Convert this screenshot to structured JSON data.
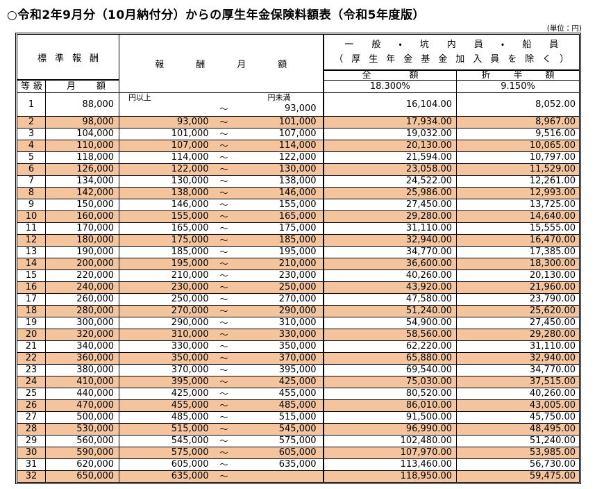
{
  "page": {
    "title": "○令和2年9月分（10月納付分）からの厚生年金保険料額表（令和5年度版）",
    "unit_label": "(単位：円)"
  },
  "colors": {
    "row_highlight": "#F4C49C"
  },
  "table": {
    "headers": {
      "standard_remuneration": "標準報酬",
      "grade": "等級",
      "monthly_amount": "月額",
      "remuneration_monthly": "報酬月額",
      "general_line1": "一般・坑内員・船員",
      "general_line2": "（厚生年金基金加入員を除く）",
      "full_amount": "全額",
      "half_amount": "折半額",
      "full_rate": "18.300%",
      "half_rate": "9.150%",
      "yen_or_more": "円以上",
      "yen_less_than": "円未満",
      "tilde": "～"
    },
    "rows": [
      {
        "grade": "1",
        "monthly": "88,000",
        "lower": "",
        "upper": "93,000",
        "full": "16,104.00",
        "half": "8,052.00"
      },
      {
        "grade": "2",
        "monthly": "98,000",
        "lower": "93,000",
        "upper": "101,000",
        "full": "17,934.00",
        "half": "8,967.00"
      },
      {
        "grade": "3",
        "monthly": "104,000",
        "lower": "101,000",
        "upper": "107,000",
        "full": "19,032.00",
        "half": "9,516.00"
      },
      {
        "grade": "4",
        "monthly": "110,000",
        "lower": "107,000",
        "upper": "114,000",
        "full": "20,130.00",
        "half": "10,065.00"
      },
      {
        "grade": "5",
        "monthly": "118,000",
        "lower": "114,000",
        "upper": "122,000",
        "full": "21,594.00",
        "half": "10,797.00"
      },
      {
        "grade": "6",
        "monthly": "126,000",
        "lower": "122,000",
        "upper": "130,000",
        "full": "23,058.00",
        "half": "11,529.00"
      },
      {
        "grade": "7",
        "monthly": "134,000",
        "lower": "130,000",
        "upper": "138,000",
        "full": "24,522.00",
        "half": "12,261.00"
      },
      {
        "grade": "8",
        "monthly": "142,000",
        "lower": "138,000",
        "upper": "146,000",
        "full": "25,986.00",
        "half": "12,993.00"
      },
      {
        "grade": "9",
        "monthly": "150,000",
        "lower": "146,000",
        "upper": "155,000",
        "full": "27,450.00",
        "half": "13,725.00"
      },
      {
        "grade": "10",
        "monthly": "160,000",
        "lower": "155,000",
        "upper": "165,000",
        "full": "29,280.00",
        "half": "14,640.00"
      },
      {
        "grade": "11",
        "monthly": "170,000",
        "lower": "165,000",
        "upper": "175,000",
        "full": "31,110.00",
        "half": "15,555.00"
      },
      {
        "grade": "12",
        "monthly": "180,000",
        "lower": "175,000",
        "upper": "185,000",
        "full": "32,940.00",
        "half": "16,470.00"
      },
      {
        "grade": "13",
        "monthly": "190,000",
        "lower": "185,000",
        "upper": "195,000",
        "full": "34,770.00",
        "half": "17,385.00"
      },
      {
        "grade": "14",
        "monthly": "200,000",
        "lower": "195,000",
        "upper": "210,000",
        "full": "36,600.00",
        "half": "18,300.00"
      },
      {
        "grade": "15",
        "monthly": "220,000",
        "lower": "210,000",
        "upper": "230,000",
        "full": "40,260.00",
        "half": "20,130.00"
      },
      {
        "grade": "16",
        "monthly": "240,000",
        "lower": "230,000",
        "upper": "250,000",
        "full": "43,920.00",
        "half": "21,960.00"
      },
      {
        "grade": "17",
        "monthly": "260,000",
        "lower": "250,000",
        "upper": "270,000",
        "full": "47,580.00",
        "half": "23,790.00"
      },
      {
        "grade": "18",
        "monthly": "280,000",
        "lower": "270,000",
        "upper": "290,000",
        "full": "51,240.00",
        "half": "25,620.00"
      },
      {
        "grade": "19",
        "monthly": "300,000",
        "lower": "290,000",
        "upper": "310,000",
        "full": "54,900.00",
        "half": "27,450.00"
      },
      {
        "grade": "20",
        "monthly": "320,000",
        "lower": "310,000",
        "upper": "330,000",
        "full": "58,560.00",
        "half": "29,280.00"
      },
      {
        "grade": "21",
        "monthly": "340,000",
        "lower": "330,000",
        "upper": "350,000",
        "full": "62,220.00",
        "half": "31,110.00"
      },
      {
        "grade": "22",
        "monthly": "360,000",
        "lower": "350,000",
        "upper": "370,000",
        "full": "65,880.00",
        "half": "32,940.00"
      },
      {
        "grade": "23",
        "monthly": "380,000",
        "lower": "370,000",
        "upper": "395,000",
        "full": "69,540.00",
        "half": "34,770.00"
      },
      {
        "grade": "24",
        "monthly": "410,000",
        "lower": "395,000",
        "upper": "425,000",
        "full": "75,030.00",
        "half": "37,515.00"
      },
      {
        "grade": "25",
        "monthly": "440,000",
        "lower": "425,000",
        "upper": "455,000",
        "full": "80,520.00",
        "half": "40,260.00"
      },
      {
        "grade": "26",
        "monthly": "470,000",
        "lower": "455,000",
        "upper": "485,000",
        "full": "86,010.00",
        "half": "43,005.00"
      },
      {
        "grade": "27",
        "monthly": "500,000",
        "lower": "485,000",
        "upper": "515,000",
        "full": "91,500.00",
        "half": "45,750.00"
      },
      {
        "grade": "28",
        "monthly": "530,000",
        "lower": "515,000",
        "upper": "545,000",
        "full": "96,990.00",
        "half": "48,495.00"
      },
      {
        "grade": "29",
        "monthly": "560,000",
        "lower": "545,000",
        "upper": "575,000",
        "full": "102,480.00",
        "half": "51,240.00"
      },
      {
        "grade": "30",
        "monthly": "590,000",
        "lower": "575,000",
        "upper": "605,000",
        "full": "107,970.00",
        "half": "53,985.00"
      },
      {
        "grade": "31",
        "monthly": "620,000",
        "lower": "605,000",
        "upper": "635,000",
        "full": "113,460.00",
        "half": "56,730.00"
      },
      {
        "grade": "32",
        "monthly": "650,000",
        "lower": "635,000",
        "upper": "",
        "full": "118,950.00",
        "half": "59,475.00"
      }
    ]
  }
}
